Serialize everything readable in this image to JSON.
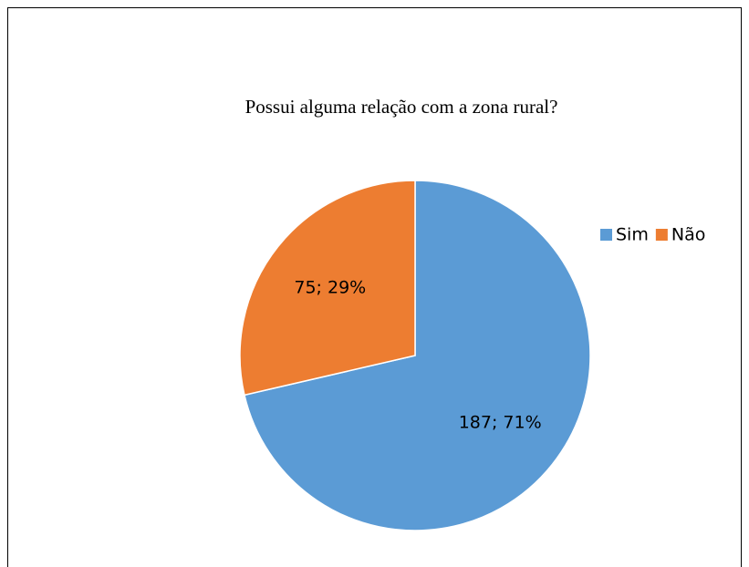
{
  "chart_data": {
    "type": "pie",
    "title": "Possui alguma relação com a zona rural?",
    "categories": [
      "Sim",
      "Não"
    ],
    "values": [
      187,
      75
    ],
    "value_labels": [
      "187; 71%",
      "75; 29%"
    ],
    "colors": [
      "#5b9bd5",
      "#ed7d31"
    ],
    "legend": "right"
  }
}
